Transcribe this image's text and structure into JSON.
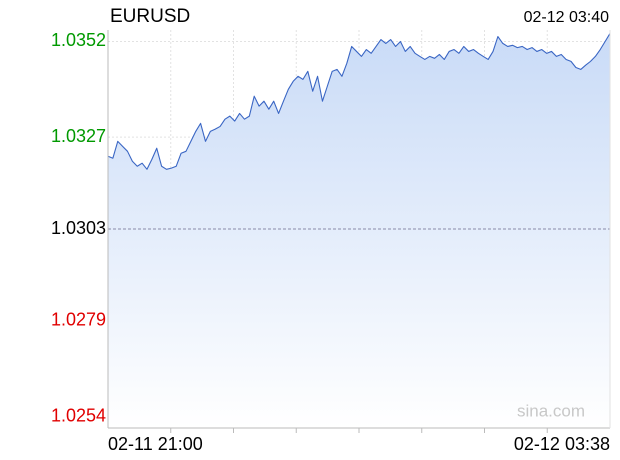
{
  "chart_data": {
    "type": "area-line",
    "title": "EURUSD",
    "timestamp": "02-12 03:40",
    "watermark": "sina.com",
    "color": "#3a66c4",
    "fill_color": "#c9dbf7",
    "grid": true,
    "reference_line": 1.0303,
    "tick_up_color": "#009900",
    "tick_down_color": "#e00000",
    "tick_base_color": "#000000",
    "ylim": [
      1.0251,
      1.0355
    ],
    "yticks": [
      1.0254,
      1.0279,
      1.0303,
      1.0327,
      1.0352
    ],
    "categories": [
      "02-11 21:00",
      null,
      null,
      null,
      null,
      null,
      null,
      null,
      null,
      null,
      null,
      null,
      null,
      null,
      null,
      null,
      null,
      null,
      null,
      null,
      null,
      null,
      null,
      null,
      null,
      null,
      null,
      null,
      null,
      null,
      null,
      null,
      null,
      null,
      null,
      null,
      null,
      null,
      null,
      null,
      null,
      null,
      null,
      null,
      null,
      null,
      null,
      null,
      null,
      null,
      null,
      null,
      null,
      null,
      null,
      null,
      null,
      null,
      null,
      null,
      null,
      null,
      null,
      null,
      null,
      null,
      null,
      null,
      null,
      null,
      null,
      null,
      null,
      null,
      null,
      null,
      null,
      null,
      null,
      null,
      null,
      null,
      null,
      null,
      null,
      null,
      null,
      null,
      null,
      null,
      null,
      null,
      null,
      null,
      null,
      null,
      null,
      null,
      null,
      null,
      null,
      null,
      null,
      "02-12 03:38"
    ],
    "values": [
      1.0322,
      1.03215,
      1.03259,
      1.03246,
      1.03233,
      1.03207,
      1.03194,
      1.03202,
      1.03186,
      1.03212,
      1.03241,
      1.03194,
      1.03186,
      1.03189,
      1.03194,
      1.03228,
      1.03233,
      1.03259,
      1.03285,
      1.03306,
      1.03259,
      1.03285,
      1.03291,
      1.03298,
      1.03317,
      1.03325,
      1.03312,
      1.03332,
      1.03317,
      1.03325,
      1.03377,
      1.03351,
      1.03364,
      1.03343,
      1.03364,
      1.03332,
      1.03364,
      1.03395,
      1.03416,
      1.03429,
      1.03421,
      1.03442,
      1.0339,
      1.03429,
      1.03364,
      1.03403,
      1.03442,
      1.03447,
      1.03429,
      1.03463,
      1.03507,
      1.03494,
      1.03481,
      1.03499,
      1.03489,
      1.03507,
      1.03525,
      1.03515,
      1.03525,
      1.03507,
      1.0352,
      1.03494,
      1.03507,
      1.03489,
      1.03481,
      1.03473,
      1.03481,
      1.03476,
      1.03486,
      1.03473,
      1.03494,
      1.03499,
      1.03489,
      1.03507,
      1.03494,
      1.03499,
      1.03489,
      1.03481,
      1.03473,
      1.03494,
      1.03533,
      1.03515,
      1.03507,
      1.0351,
      1.03504,
      1.03507,
      1.03499,
      1.03504,
      1.03494,
      1.03499,
      1.03489,
      1.03494,
      1.03481,
      1.03486,
      1.03473,
      1.03468,
      1.03452,
      1.03447,
      1.03458,
      1.03468,
      1.03481,
      1.03499,
      1.0352,
      1.03541
    ]
  }
}
